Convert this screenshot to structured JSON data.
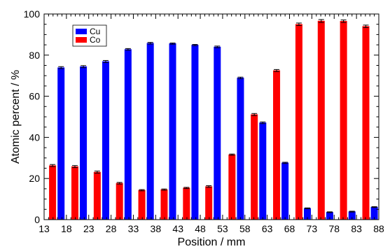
{
  "chart_data": {
    "type": "bar",
    "xlabel": "Position / mm",
    "ylabel": "Atomic percent / %",
    "xlim": [
      13,
      88
    ],
    "ylim": [
      0,
      100
    ],
    "xticks": [
      13,
      18,
      23,
      28,
      33,
      38,
      43,
      48,
      53,
      58,
      63,
      68,
      73,
      78,
      83,
      88
    ],
    "yticks": [
      0,
      20,
      40,
      60,
      80,
      100
    ],
    "legend_position": "top-left",
    "series": [
      {
        "name": "Co",
        "color": "#ff0000",
        "x": [
          14.9,
          19.9,
          24.9,
          29.9,
          34.9,
          39.9,
          44.9,
          49.9,
          55.1,
          60.1,
          65.1,
          70.1,
          75.1,
          80.1,
          85.1
        ],
        "values": [
          26.3,
          25.8,
          23.1,
          17.7,
          14.3,
          14.6,
          15.4,
          16.1,
          31.6,
          51.1,
          72.5,
          95.0,
          96.6,
          96.5,
          94.0
        ],
        "errors": [
          0.5,
          0.5,
          0.5,
          0.4,
          0.3,
          0.3,
          0.3,
          0.4,
          0.3,
          0.5,
          0.5,
          0.6,
          0.7,
          0.6,
          0.6
        ]
      },
      {
        "name": "Cu",
        "color": "#0000ff",
        "x": [
          16.8,
          21.8,
          26.8,
          31.8,
          36.8,
          41.8,
          46.8,
          51.8,
          57.0,
          62.0,
          67.0,
          72.0,
          77.0,
          82.0,
          87.0
        ],
        "values": [
          73.9,
          74.4,
          76.9,
          82.8,
          85.8,
          85.6,
          84.9,
          84.0,
          68.9,
          47.1,
          27.6,
          5.5,
          3.6,
          3.9,
          6.1
        ],
        "errors": [
          0.5,
          0.5,
          0.5,
          0.4,
          0.4,
          0.3,
          0.3,
          0.4,
          0.4,
          0.4,
          0.3,
          0.2,
          0.2,
          0.2,
          0.2
        ]
      }
    ]
  }
}
